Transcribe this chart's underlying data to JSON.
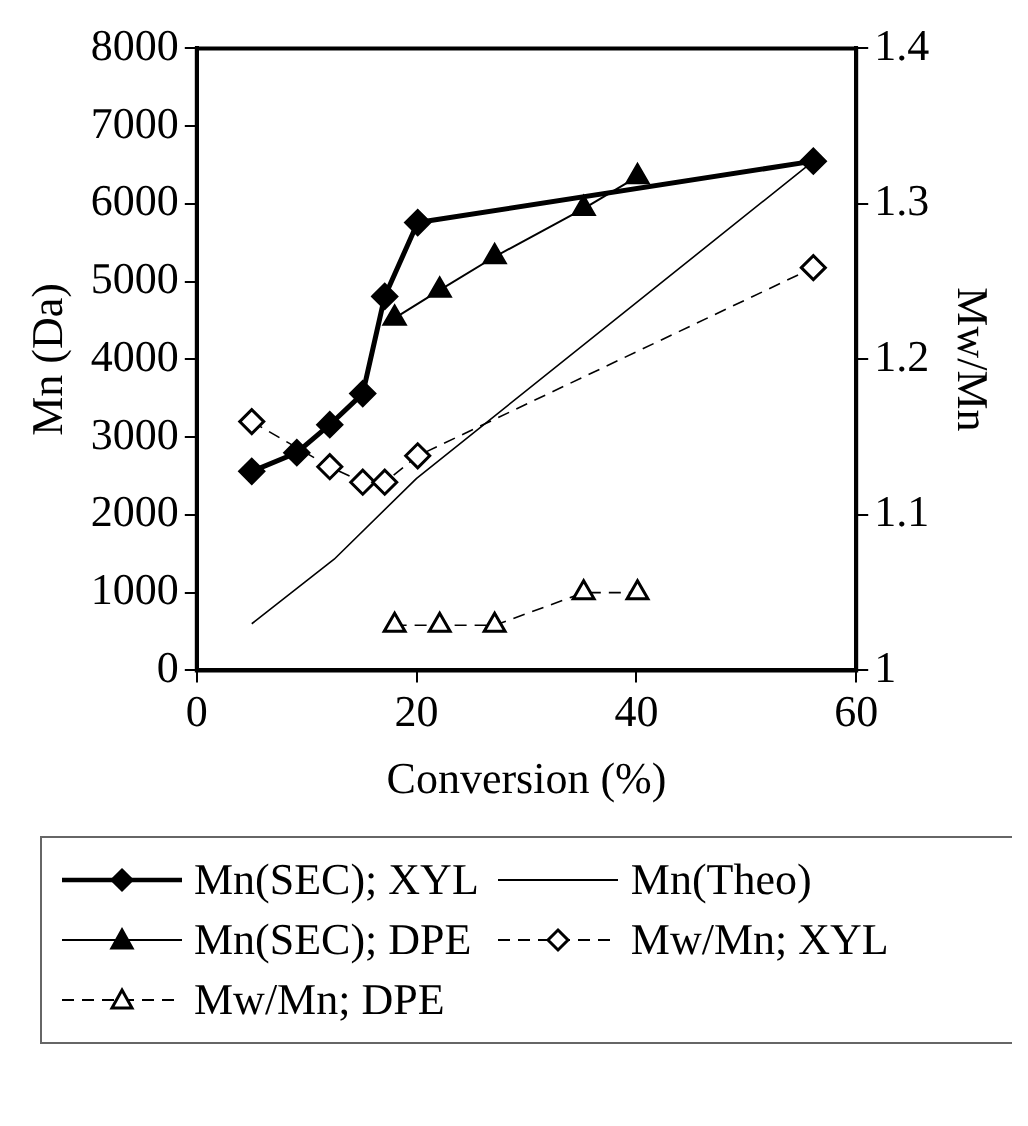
{
  "chart_data": {
    "type": "line",
    "xlabel": "Conversion (%)",
    "ylabel": "Mn (Da)",
    "y2label": "Mw/Mn",
    "xlim": [
      0,
      60
    ],
    "xticks": [
      0,
      20,
      40,
      60
    ],
    "ylim": [
      0,
      8000
    ],
    "yticks": [
      0,
      1000,
      2000,
      3000,
      4000,
      5000,
      6000,
      7000,
      8000
    ],
    "y2lim": [
      1,
      1.4
    ],
    "y2ticks": [
      1,
      1.1,
      1.2,
      1.3,
      1.4
    ],
    "grid": false,
    "legend": "bottom",
    "series": [
      {
        "name": "Mn(SEC); XYL",
        "color": "#000000",
        "marker": "diamond",
        "line_style": "solid",
        "x": [
          5,
          9.1,
          12.1,
          15.1,
          17.1,
          20.1,
          56.1
        ],
        "values": [
          2560,
          2800,
          3160,
          3560,
          4810,
          5760,
          6550
        ]
      },
      {
        "name": "Mn(Theo)",
        "color": "#000000",
        "marker": "none",
        "line_style": "solid",
        "x": [
          5,
          12.5,
          20,
          56.1
        ],
        "values": [
          600,
          1430,
          2470,
          6550
        ]
      },
      {
        "name": "Mn(SEC); DPE",
        "color": "#000000",
        "marker": "triangle",
        "line_style": "solid",
        "x": [
          18,
          22.1,
          27.1,
          35.2,
          40.1
        ],
        "values": [
          4530,
          4890,
          5320,
          5940,
          6350
        ]
      },
      {
        "name": "Mw/Mn; XYL",
        "color": "#000000",
        "marker": "diamond",
        "line_style": "dashed",
        "axis": "y2",
        "x": [
          5,
          12.1,
          15.1,
          17.1,
          20.1,
          56.1
        ],
        "values": [
          1.16,
          1.131,
          1.121,
          1.121,
          1.138,
          1.259
        ]
      },
      {
        "name": "Mw/Mn; DPE",
        "color": "#000000",
        "marker": "triangle",
        "line_style": "dashed",
        "axis": "y2",
        "x": [
          18,
          22.1,
          27.1,
          35.2,
          40.1
        ],
        "values": [
          1.029,
          1.029,
          1.029,
          1.05,
          1.05
        ]
      }
    ]
  }
}
